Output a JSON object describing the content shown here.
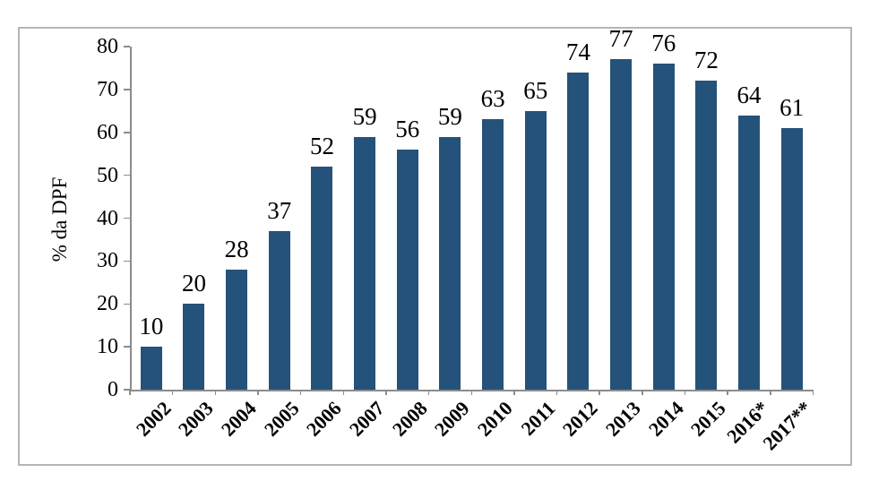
{
  "chart_data": {
    "type": "bar",
    "title": "",
    "ylabel": "% da DPF",
    "xlabel": "",
    "categories": [
      "2002",
      "2003",
      "2004",
      "2005",
      "2006",
      "2007",
      "2008",
      "2009",
      "2010",
      "2011",
      "2012",
      "2013",
      "2014",
      "2015",
      "2016*",
      "2017**"
    ],
    "values": [
      10,
      20,
      28,
      37,
      52,
      59,
      56,
      59,
      63,
      65,
      74,
      77,
      76,
      72,
      64,
      61
    ],
    "data_labels": [
      "10",
      "20",
      "28",
      "37",
      "52",
      "59",
      "56",
      "59",
      "63",
      "65",
      "74",
      "77",
      "76",
      "72",
      "64",
      "61"
    ],
    "ylim": [
      0,
      80
    ],
    "yticks": [
      0,
      10,
      20,
      30,
      40,
      50,
      60,
      70,
      80
    ],
    "grid": false,
    "legend": "none",
    "bar_color": "#24527b",
    "axis_color": "#8c8c8c",
    "frame_border_color": "#b5b5b5",
    "label_color": "#000000"
  }
}
